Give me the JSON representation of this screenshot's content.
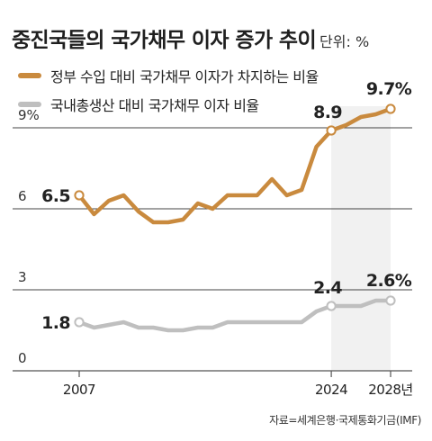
{
  "chart_data": {
    "type": "line",
    "title": "중진국들의 국가채무 이자 증가 추이",
    "unit_label": "단위: %",
    "source": "자료=세계은행·국제통화기금(IMF)",
    "x": [
      2007,
      2008,
      2009,
      2010,
      2011,
      2012,
      2013,
      2014,
      2015,
      2016,
      2017,
      2018,
      2019,
      2020,
      2021,
      2022,
      2023,
      2024,
      2025,
      2026,
      2027,
      2028
    ],
    "xlim": [
      2007,
      2028
    ],
    "ylim": [
      0,
      10
    ],
    "x_ticks": [
      {
        "value": 2007,
        "label": "2007"
      },
      {
        "value": 2024,
        "label": "2024"
      },
      {
        "value": 2028,
        "label": "2028년"
      }
    ],
    "y_ticks": [
      {
        "value": 0,
        "label": "0"
      },
      {
        "value": 3,
        "label": "3"
      },
      {
        "value": 6,
        "label": "6"
      },
      {
        "value": 9,
        "label": "9%"
      }
    ],
    "gridlines": [
      3,
      6,
      9
    ],
    "shaded_from": 2024,
    "series": [
      {
        "name": "정부 수입 대비 국가채무 이자가 차지하는 비율",
        "color": "#c98a3e",
        "values": [
          6.5,
          5.8,
          6.3,
          6.5,
          5.9,
          5.5,
          5.5,
          5.6,
          6.2,
          6.0,
          6.5,
          6.5,
          6.5,
          7.1,
          6.5,
          6.7,
          8.3,
          8.9,
          9.1,
          9.4,
          9.5,
          9.7
        ],
        "labels": [
          {
            "value": 6.5,
            "text": "6.5",
            "index": 0
          },
          {
            "value": 8.9,
            "text": "8.9",
            "index": 17
          },
          {
            "value": 9.7,
            "text": "9.7%",
            "index": 21
          }
        ]
      },
      {
        "name": "국내총생산 대비 국가채무 이자 비율",
        "color": "#bfbfbf",
        "values": [
          1.8,
          1.6,
          1.7,
          1.8,
          1.6,
          1.6,
          1.5,
          1.5,
          1.6,
          1.6,
          1.8,
          1.8,
          1.8,
          1.8,
          1.8,
          1.8,
          2.2,
          2.4,
          2.4,
          2.4,
          2.6,
          2.6
        ],
        "labels": [
          {
            "value": 1.8,
            "text": "1.8",
            "index": 0
          },
          {
            "value": 2.4,
            "text": "2.4",
            "index": 17
          },
          {
            "value": 2.6,
            "text": "2.6%",
            "index": 21
          }
        ]
      }
    ]
  }
}
